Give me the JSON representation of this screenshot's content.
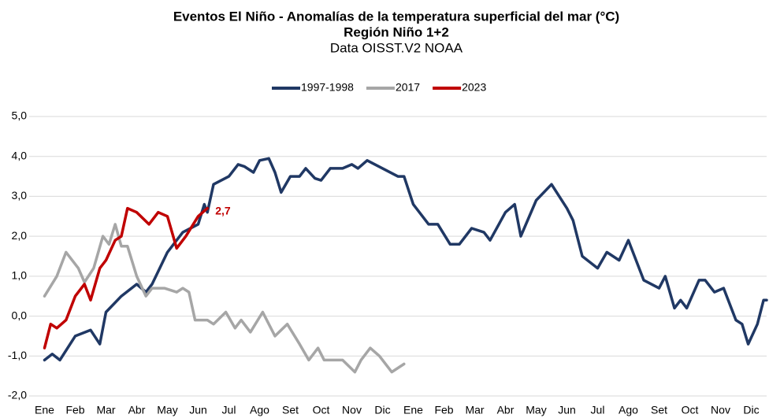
{
  "chart_data": {
    "type": "line",
    "title": "Eventos El Niño - Anomalías de la temperatura superficial del mar (°C)",
    "subtitle": "Región Niño 1+2",
    "source": "Data OISST.V2 NOAA",
    "xlim": [
      0,
      24
    ],
    "xticks": [
      {
        "value": 0.5,
        "label": "Ene"
      },
      {
        "value": 1.5,
        "label": "Feb"
      },
      {
        "value": 2.5,
        "label": "Mar"
      },
      {
        "value": 3.5,
        "label": "Abr"
      },
      {
        "value": 4.5,
        "label": "May"
      },
      {
        "value": 5.5,
        "label": "Jun"
      },
      {
        "value": 6.5,
        "label": "Jul"
      },
      {
        "value": 7.5,
        "label": "Ago"
      },
      {
        "value": 8.5,
        "label": "Set"
      },
      {
        "value": 9.5,
        "label": "Oct"
      },
      {
        "value": 10.5,
        "label": "Nov"
      },
      {
        "value": 11.5,
        "label": "Dic"
      },
      {
        "value": 12.5,
        "label": "Ene"
      },
      {
        "value": 13.5,
        "label": "Feb"
      },
      {
        "value": 14.5,
        "label": "Mar"
      },
      {
        "value": 15.5,
        "label": "Abr"
      },
      {
        "value": 16.5,
        "label": "May"
      },
      {
        "value": 17.5,
        "label": "Jun"
      },
      {
        "value": 18.5,
        "label": "Jul"
      },
      {
        "value": 19.5,
        "label": "Ago"
      },
      {
        "value": 20.5,
        "label": "Set"
      },
      {
        "value": 21.5,
        "label": "Oct"
      },
      {
        "value": 22.5,
        "label": "Nov"
      },
      {
        "value": 23.5,
        "label": "Dic"
      }
    ],
    "ylim": [
      -2,
      5
    ],
    "yticks": [
      {
        "value": -2,
        "label": "-2,0"
      },
      {
        "value": -1,
        "label": "-1,0"
      },
      {
        "value": 0,
        "label": "0,0"
      },
      {
        "value": 1,
        "label": "1,0"
      },
      {
        "value": 2,
        "label": "2,0"
      },
      {
        "value": 3,
        "label": "3,0"
      },
      {
        "value": 4,
        "label": "4,0"
      },
      {
        "value": 5,
        "label": "5,0"
      }
    ],
    "grid": true,
    "legend": "top",
    "series": [
      {
        "name": "1997-1998",
        "color": "#203864",
        "x": [
          0.5,
          0.75,
          1.0,
          1.5,
          2.0,
          2.3,
          2.5,
          3.0,
          3.5,
          3.8,
          4.0,
          4.5,
          5.0,
          5.5,
          5.7,
          5.8,
          6.0,
          6.5,
          6.8,
          7.0,
          7.3,
          7.5,
          7.8,
          8.0,
          8.2,
          8.5,
          8.8,
          9.0,
          9.3,
          9.5,
          9.8,
          10.2,
          10.5,
          10.7,
          11.0,
          11.5,
          12.0,
          12.2,
          12.5,
          13.0,
          13.3,
          13.7,
          14.0,
          14.4,
          14.8,
          15.0,
          15.5,
          15.8,
          16.0,
          16.5,
          17.0,
          17.5,
          17.7,
          18.0,
          18.5,
          18.8,
          19.2,
          19.5,
          20.0,
          20.5,
          20.7,
          21.0,
          21.2,
          21.4,
          21.8,
          22.0,
          22.3,
          22.6,
          23.0,
          23.2,
          23.4,
          23.7,
          23.9,
          24.0
        ],
        "values": [
          -1.1,
          -0.95,
          -1.1,
          -0.5,
          -0.35,
          -0.7,
          0.1,
          0.5,
          0.8,
          0.6,
          0.8,
          1.6,
          2.1,
          2.3,
          2.8,
          2.6,
          3.3,
          3.5,
          3.8,
          3.75,
          3.6,
          3.9,
          3.95,
          3.6,
          3.1,
          3.5,
          3.5,
          3.7,
          3.45,
          3.4,
          3.7,
          3.7,
          3.8,
          3.7,
          3.9,
          3.7,
          3.5,
          3.5,
          2.8,
          2.3,
          2.3,
          1.8,
          1.8,
          2.2,
          2.1,
          1.9,
          2.6,
          2.8,
          2.0,
          2.9,
          3.3,
          2.7,
          2.4,
          1.5,
          1.2,
          1.6,
          1.4,
          1.9,
          0.9,
          0.7,
          1.0,
          0.2,
          0.4,
          0.2,
          0.9,
          0.9,
          0.6,
          0.7,
          -0.1,
          -0.2,
          -0.7,
          -0.2,
          0.4,
          0.4
        ]
      },
      {
        "name": "2017",
        "color": "#a6a6a6",
        "x": [
          0.5,
          0.9,
          1.2,
          1.6,
          1.8,
          2.1,
          2.4,
          2.6,
          2.8,
          3.0,
          3.2,
          3.5,
          3.8,
          4.0,
          4.4,
          4.8,
          5.0,
          5.2,
          5.4,
          5.8,
          6.0,
          6.4,
          6.7,
          6.9,
          7.2,
          7.6,
          8.0,
          8.4,
          8.8,
          9.1,
          9.4,
          9.6,
          10.0,
          10.2,
          10.6,
          10.8,
          11.1,
          11.4,
          11.8,
          12.2
        ],
        "values": [
          0.5,
          1.0,
          1.6,
          1.2,
          0.85,
          1.2,
          2.0,
          1.8,
          2.3,
          1.75,
          1.75,
          1.0,
          0.5,
          0.7,
          0.7,
          0.6,
          0.7,
          0.6,
          -0.1,
          -0.1,
          -0.2,
          0.1,
          -0.3,
          -0.1,
          -0.4,
          0.1,
          -0.5,
          -0.2,
          -0.7,
          -1.1,
          -0.8,
          -1.1,
          -1.1,
          -1.1,
          -1.4,
          -1.1,
          -0.8,
          -1.0,
          -1.4,
          -1.2
        ]
      },
      {
        "name": "2023",
        "color": "#c00000",
        "x": [
          0.5,
          0.7,
          0.9,
          1.2,
          1.5,
          1.8,
          2.0,
          2.3,
          2.5,
          2.8,
          3.0,
          3.2,
          3.5,
          3.9,
          4.2,
          4.5,
          4.8,
          5.1,
          5.5,
          5.8
        ],
        "values": [
          -0.8,
          -0.2,
          -0.3,
          -0.1,
          0.5,
          0.8,
          0.4,
          1.2,
          1.4,
          1.9,
          2.0,
          2.7,
          2.6,
          2.3,
          2.6,
          2.5,
          1.7,
          2.0,
          2.5,
          2.7
        ],
        "value_labels": [
          null,
          null,
          null,
          null,
          null,
          null,
          null,
          null,
          null,
          null,
          null,
          null,
          null,
          null,
          null,
          null,
          null,
          null,
          null,
          "2,7"
        ]
      }
    ]
  }
}
